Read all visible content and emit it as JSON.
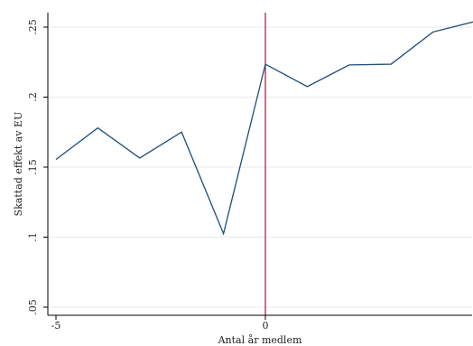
{
  "chart_data": {
    "type": "line",
    "title": "",
    "xlabel": "Antal år medlem",
    "ylabel": "Skattad effekt av EU",
    "x": [
      -5,
      -4,
      -3,
      -2,
      -1,
      0,
      1,
      2,
      3,
      4,
      5
    ],
    "series": [
      {
        "values": [
          0.1555,
          0.178,
          0.1565,
          0.175,
          0.1025,
          0.2235,
          0.2075,
          0.223,
          0.2235,
          0.2465,
          0.254
        ]
      }
    ],
    "xlim": [
      -5,
      5
    ],
    "ylim": [
      0.045,
      0.259
    ],
    "x_ticks": [
      -5,
      0
    ],
    "x_tick_labels": [
      "-5",
      "0"
    ],
    "y_ticks": [
      0.05,
      0.1,
      0.15,
      0.2,
      0.25
    ],
    "y_tick_labels": [
      ".05",
      ".1",
      ".15",
      ".2",
      ".25"
    ],
    "reference_line_x": 0,
    "grid": "horizontal",
    "colors": {
      "line": "#1f4e79",
      "reference_line": "#a0143c",
      "grid": "#eaeaea",
      "axis": "#000000"
    }
  }
}
